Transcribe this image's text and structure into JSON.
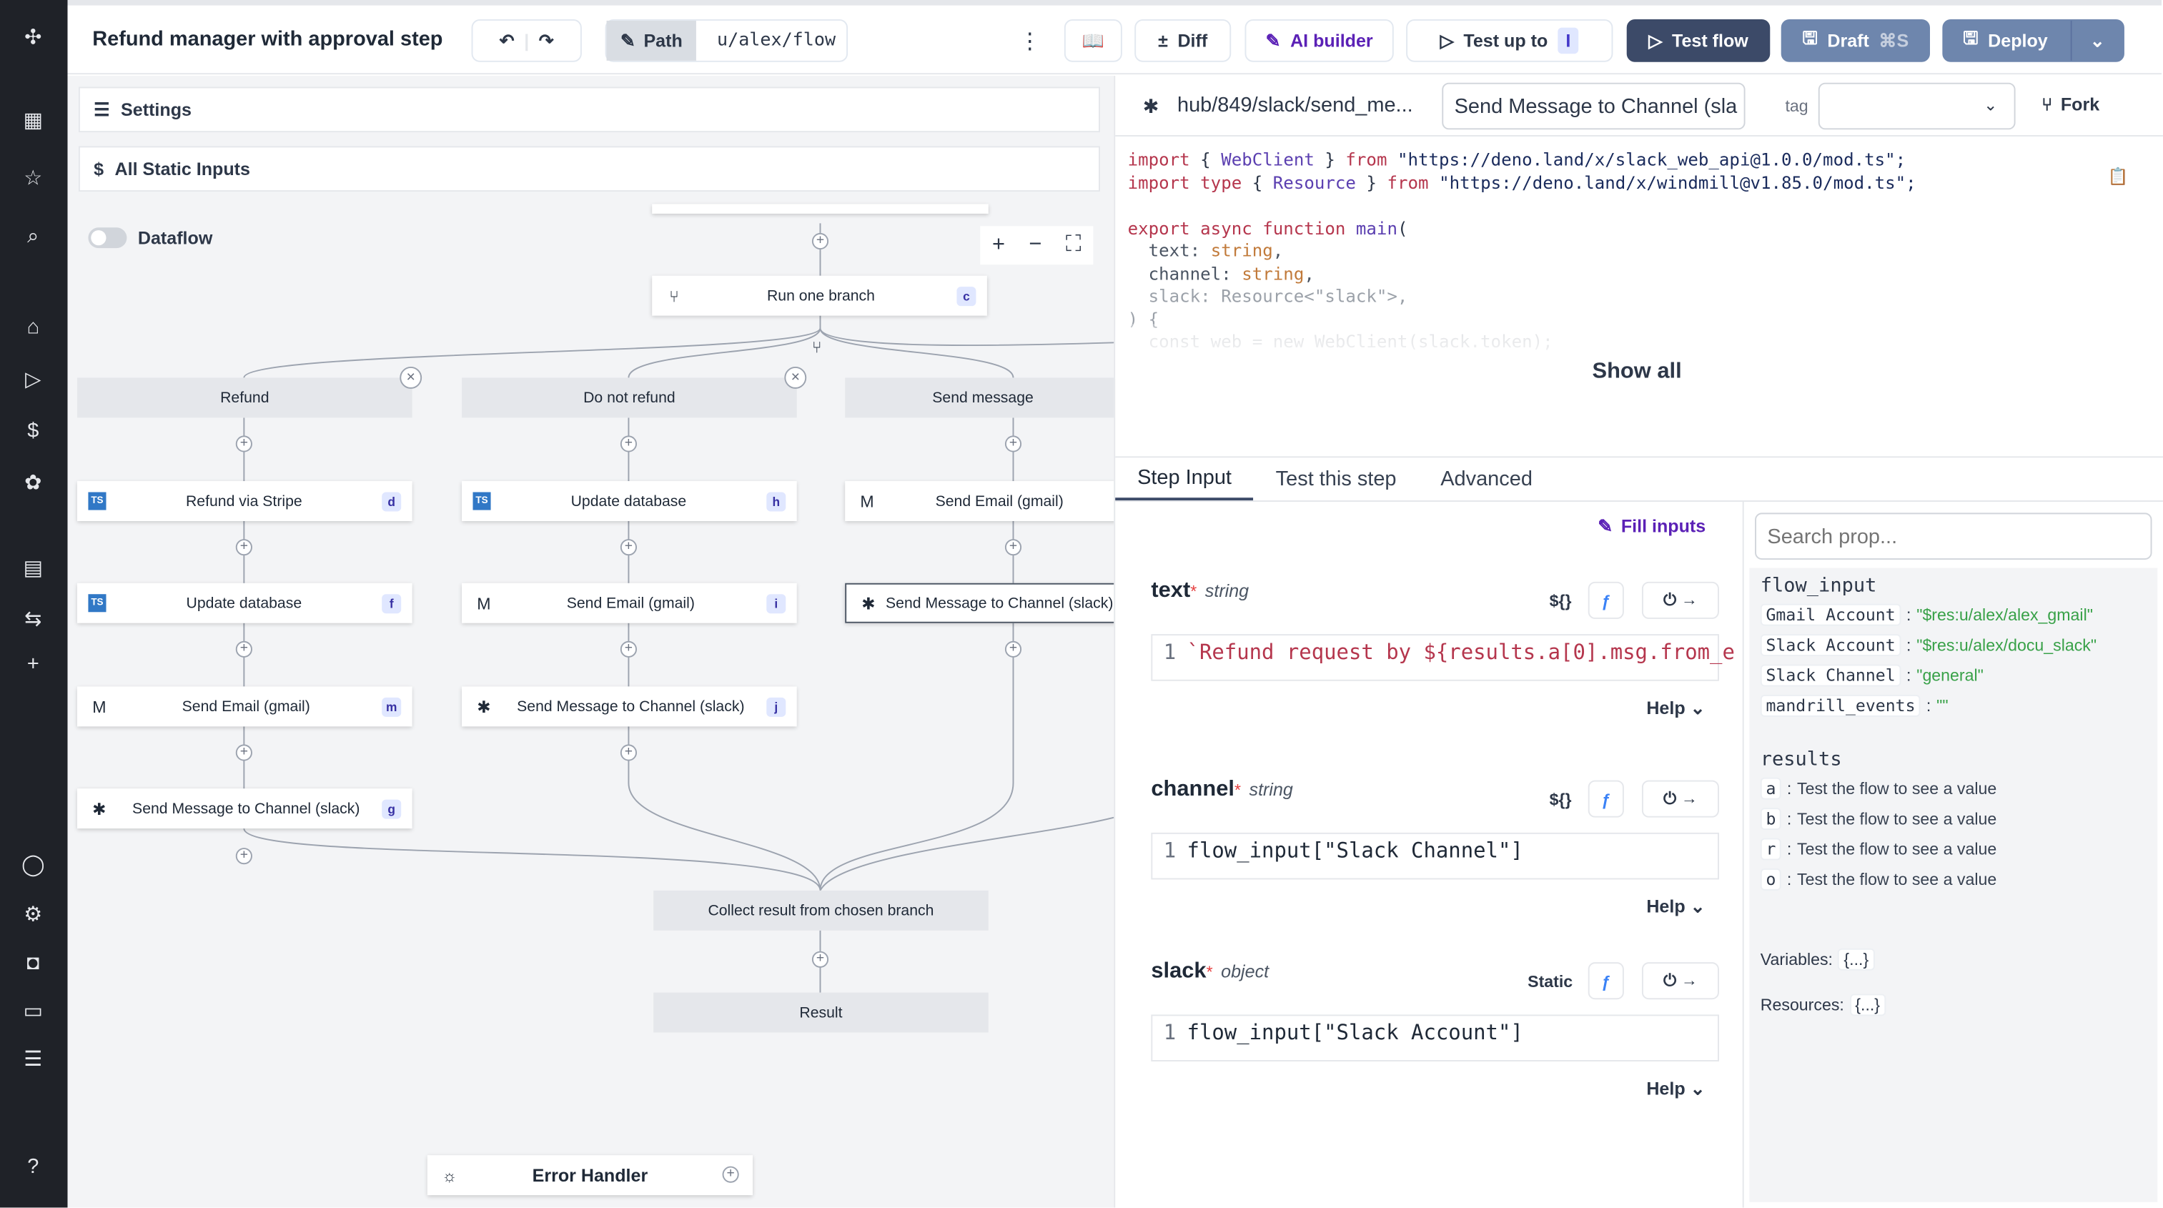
{
  "sidebar": {
    "items": [
      "logo-icon",
      "building-icon",
      "star-icon",
      "search-icon",
      "home-icon",
      "play-icon",
      "dollar-icon",
      "cluster-icon",
      "calendar-icon",
      "routes-icon",
      "plus-icon",
      "user-icon",
      "gear-icon",
      "bot-icon",
      "folder-icon",
      "list-icon",
      "help-icon"
    ]
  },
  "header": {
    "title": "Refund manager with approval step",
    "path_label": "Path",
    "path_value": "u/alex/flow",
    "diff": "Diff",
    "ai_builder": "AI builder",
    "test_up_to": "Test up to",
    "test_up_to_badge": "I",
    "test_flow": "Test flow",
    "draft": "Draft",
    "draft_shortcut": "⌘S",
    "deploy": "Deploy"
  },
  "left": {
    "settings": "Settings",
    "static_inputs": "All Static Inputs",
    "dataflow": "Dataflow",
    "dataflow_on": false,
    "error_handler": "Error Handler"
  },
  "graph": {
    "nodes": [
      {
        "label": "Run one branch",
        "badge": "c",
        "icon": "branch"
      },
      {
        "label": "Refund",
        "badge": "",
        "icon": "",
        "header": true
      },
      {
        "label": "Do not refund",
        "badge": "",
        "icon": "",
        "header": true
      },
      {
        "label": "Send message",
        "badge": "",
        "icon": "",
        "header": true
      },
      {
        "label": "Refund via Stripe",
        "badge": "d",
        "icon": "ts"
      },
      {
        "label": "Update database",
        "badge": "h",
        "icon": "ts"
      },
      {
        "label": "Send Email (gmail)",
        "badge": "",
        "icon": "gmail"
      },
      {
        "label": "Update database",
        "badge": "f",
        "icon": "ts"
      },
      {
        "label": "Send Email (gmail)",
        "badge": "i",
        "icon": "gmail"
      },
      {
        "label": "Send Message to Channel (slack)",
        "badge": "",
        "icon": "slack",
        "selected": true
      },
      {
        "label": "Send Email (gmail)",
        "badge": "m",
        "icon": "gmail"
      },
      {
        "label": "Send Message to Channel (slack)",
        "badge": "j",
        "icon": "slack"
      },
      {
        "label": "Send Message to Channel (slack)",
        "badge": "g",
        "icon": "slack"
      },
      {
        "label": "Collect result from chosen branch",
        "badge": "",
        "icon": "",
        "header": true
      },
      {
        "label": "Result",
        "badge": "",
        "icon": "",
        "header": true
      }
    ]
  },
  "step": {
    "path": "hub/849/slack/send_me...",
    "summary": "Send Message to Channel (sla",
    "tag_label": "tag",
    "tag_value": "",
    "fork": "Fork",
    "show_all": "Show all",
    "code": [
      [
        [
          "import ",
          "k"
        ],
        [
          "{ ",
          ""
        ],
        [
          "WebClient",
          "t"
        ],
        [
          " } ",
          ""
        ],
        [
          "from ",
          "k"
        ],
        [
          "\"https://deno.land/x/slack_web_api@1.0.0/mod.ts\";",
          "s"
        ]
      ],
      [
        [
          "import type ",
          "k"
        ],
        [
          "{ ",
          ""
        ],
        [
          "Resource",
          "t"
        ],
        [
          " } ",
          ""
        ],
        [
          "from ",
          "k"
        ],
        [
          "\"https://deno.land/x/windmill@v1.85.0/mod.ts\";",
          "s"
        ]
      ],
      [],
      [
        [
          "export async function ",
          "k"
        ],
        [
          "main",
          "t"
        ],
        [
          "(",
          ""
        ]
      ],
      [
        [
          "  text: ",
          ""
        ],
        [
          "string",
          "y"
        ],
        [
          ",",
          ""
        ]
      ],
      [
        [
          "  channel: ",
          ""
        ],
        [
          "string",
          "y"
        ],
        [
          ",",
          ""
        ]
      ],
      [
        [
          "  slack: Resource<\"slack\">,",
          ""
        ]
      ],
      [
        [
          ") {",
          ""
        ]
      ],
      [
        [
          "  const web = new WebClient(slack.token);",
          ""
        ]
      ]
    ],
    "tabs": [
      "Step Input",
      "Test this step",
      "Advanced"
    ],
    "active_tab": 0,
    "fill_inputs": "Fill inputs",
    "fields": [
      {
        "name": "text",
        "type": "string",
        "mode": "${}",
        "line": "1",
        "value": "`Refund request by ${results.a[0].msg.from_e",
        "help": "Help"
      },
      {
        "name": "channel",
        "type": "string",
        "mode": "${}",
        "line": "1",
        "value": "flow_input[\"Slack Channel\"]",
        "help": "Help"
      },
      {
        "name": "slack",
        "type": "object",
        "mode": "Static",
        "line": "1",
        "value": "flow_input[\"Slack Account\"]",
        "help": "Help"
      }
    ]
  },
  "props": {
    "search_placeholder": "Search prop...",
    "flow_input_title": "flow_input",
    "flow_input": [
      {
        "k": "Gmail Account",
        "v": "\"$res:u/alex/alex_gmail\""
      },
      {
        "k": "Slack Account",
        "v": "\"$res:u/alex/docu_slack\""
      },
      {
        "k": "Slack Channel",
        "v": "\"general\""
      },
      {
        "k": "mandrill_events",
        "v": "\"\""
      }
    ],
    "results_title": "results",
    "results": [
      {
        "k": "a",
        "v": "Test the flow to see a value"
      },
      {
        "k": "b",
        "v": "Test the flow to see a value"
      },
      {
        "k": "r",
        "v": "Test the flow to see a value"
      },
      {
        "k": "o",
        "v": "Test the flow to see a value"
      }
    ],
    "variables_label": "Variables:",
    "variables_value": "{...}",
    "resources_label": "Resources:",
    "resources_value": "{...}"
  },
  "colors": {
    "sidebar": "#1f2228",
    "test_flow": "#3c4a68",
    "deploy": "#6e86ad",
    "ai": "#5b21b6",
    "green": "#38a148"
  }
}
